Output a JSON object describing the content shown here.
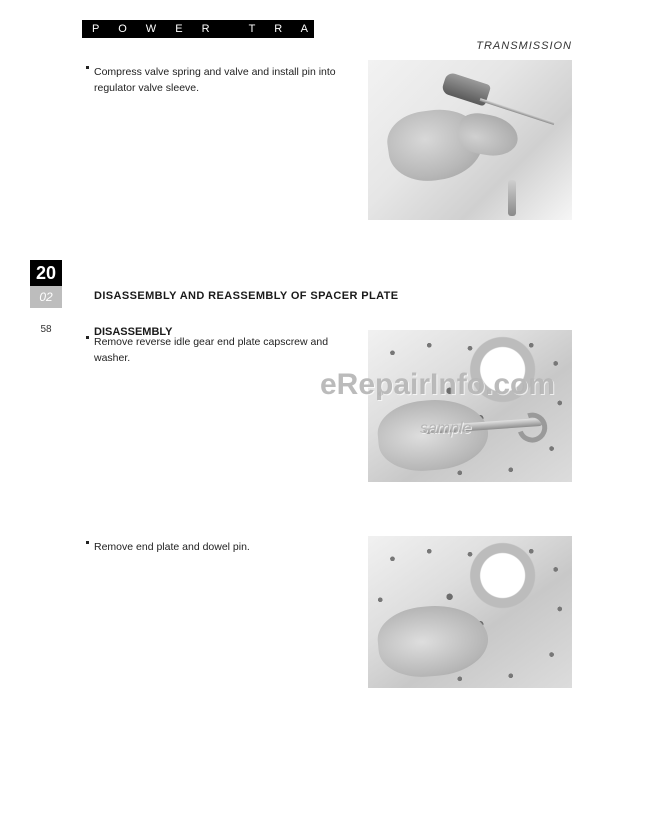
{
  "header": {
    "section": "P O W E R",
    "section2": "T R A I N",
    "subsection": "TRANSMISSION"
  },
  "tab": {
    "chapter": "20",
    "sub": "02",
    "page": "58"
  },
  "headings": {
    "spacer_plate": "DISASSEMBLY  AND  REASSEMBLY  OF  SPACER  PLATE",
    "disassembly": "DISASSEMBLY"
  },
  "bullets": {
    "b1": "Compress valve spring and valve and install pin into regulator valve sleeve.",
    "b2": "Remove reverse idle gear end plate capscrew and washer.",
    "b3": "Remove end plate and dowel pin."
  },
  "figures": {
    "fig1_alt": "Hand compressing valve spring with screwdriver into regulator valve sleeve",
    "fig2_alt": "Hand with socket wrench removing reverse idle gear end plate capscrew on spacer plate casting",
    "fig3_alt": "Hand removing end plate and dowel pin from spacer plate casting"
  },
  "watermark": {
    "site": "eRepairInfo.com",
    "note": "sample"
  }
}
